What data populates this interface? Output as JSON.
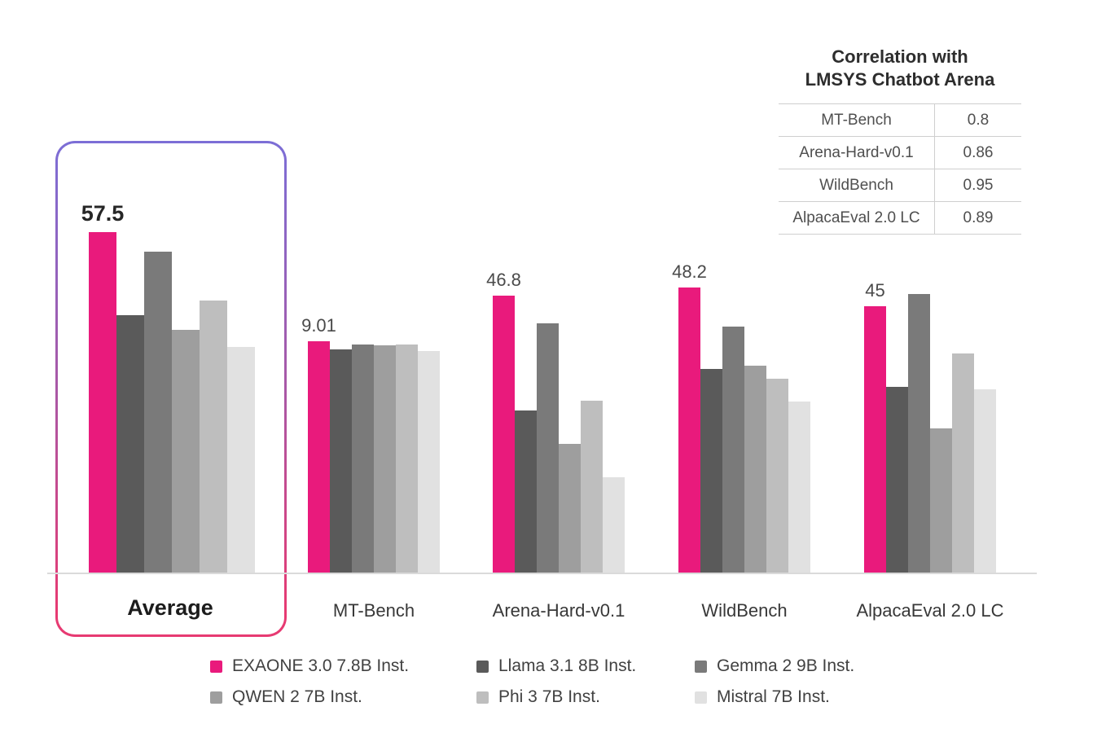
{
  "chart_data": {
    "type": "bar",
    "title": "",
    "categories": [
      "Average",
      "MT-Bench",
      "Arena-Hard-v0.1",
      "WildBench",
      "AlpacaEval 2.0 LC"
    ],
    "series": [
      {
        "name": "EXAONE 3.0 7.8B Inst.",
        "color": "#E91A7C",
        "values": [
          57.5,
          9.01,
          46.8,
          48.2,
          45
        ]
      },
      {
        "name": "Llama 3.1 8B Inst.",
        "color": "#5A5A5A",
        "values": [
          43.5,
          8.7,
          27.4,
          34.4,
          31.3
        ]
      },
      {
        "name": "Gemma 2 9B Inst.",
        "color": "#7A7A7A",
        "values": [
          54.2,
          8.9,
          42.1,
          41.5,
          47.1
        ]
      },
      {
        "name": "QWEN 2 7B Inst.",
        "color": "#9E9E9E",
        "values": [
          41.0,
          8.85,
          21.7,
          34.9,
          24.3
        ]
      },
      {
        "name": "Phi 3 7B Inst.",
        "color": "#BEBEBE",
        "values": [
          46.0,
          8.9,
          29.0,
          32.8,
          37.0
        ]
      },
      {
        "name": "Mistral 7B Inst.",
        "color": "#E1E1E1",
        "values": [
          38.1,
          8.65,
          16.1,
          28.9,
          31.0
        ]
      }
    ],
    "exaone_value_labels": [
      "57.5",
      "9.01",
      "46.8",
      "48.2",
      "45"
    ],
    "highlighted_category": "Average",
    "legend_position": "bottom-center",
    "grid": false,
    "axis": {
      "baseline_only": true,
      "tick_labels": "none"
    },
    "scale_note": "per-group scaling: MT-Bench drawn on its own 0-10 scale; all other groups share one common value scale; only EXAONE bars carry value labels"
  },
  "colors": {
    "accent_pink": "#E91A7C",
    "highlight_border_top": "#7C6ED6",
    "highlight_border_bottom": "#E73A72",
    "axis_line": "#DADADA"
  },
  "correlation_table": {
    "title_line1": "Correlation with",
    "title_line2": "LMSYS Chatbot Arena",
    "rows": [
      {
        "label": "MT-Bench",
        "value": "0.8"
      },
      {
        "label": "Arena-Hard-v0.1",
        "value": "0.86"
      },
      {
        "label": "WildBench",
        "value": "0.95"
      },
      {
        "label": "AlpacaEval 2.0 LC",
        "value": "0.89"
      }
    ]
  }
}
